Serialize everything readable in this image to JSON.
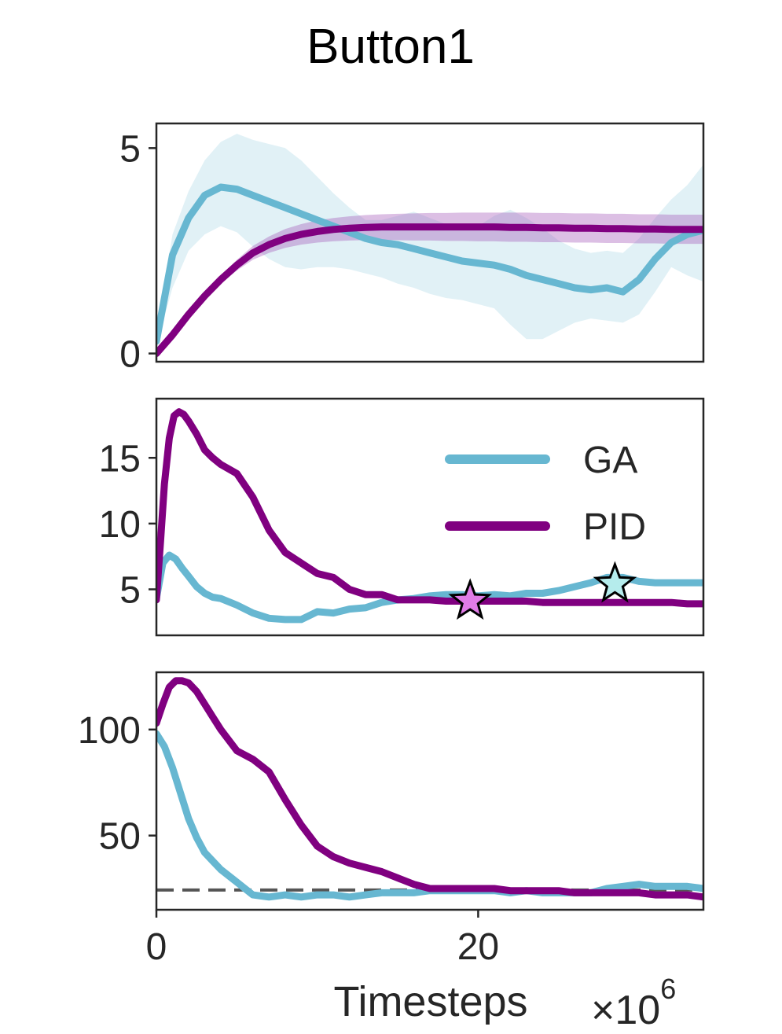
{
  "figure": {
    "title": "Button1",
    "xlabel": "Timesteps",
    "x_scale_base": "×10",
    "x_scale_exp": "6"
  },
  "colors": {
    "GA": "#67b7d1",
    "PID": "#800080",
    "GA_band": "#67b7d1",
    "PID_band": "#a356b8",
    "GA_marker": "#b5ecec",
    "PID_marker": "#e07ce6",
    "threshold": "#555555"
  },
  "legend": {
    "entries": [
      "GA",
      "PID"
    ],
    "placement": "upper-right of middle panel"
  },
  "chart_data": [
    {
      "type": "line",
      "panel": "top",
      "xlim": [
        0,
        34
      ],
      "ylim": [
        -0.2,
        5.6
      ],
      "yticks": [
        0,
        5
      ],
      "ytick_labels": [
        "0",
        "5"
      ],
      "xtick_labels_visible": false,
      "series": [
        {
          "name": "GA",
          "x": [
            0,
            1,
            2,
            3,
            4,
            5,
            6,
            7,
            8,
            9,
            10,
            11,
            12,
            13,
            14,
            15,
            16,
            17,
            18,
            19,
            20,
            21,
            22,
            23,
            24,
            25,
            26,
            27,
            28,
            29,
            30,
            31,
            32,
            33,
            34
          ],
          "values": [
            0.3,
            2.4,
            3.3,
            3.85,
            4.05,
            4.0,
            3.85,
            3.7,
            3.55,
            3.4,
            3.25,
            3.1,
            2.95,
            2.8,
            2.7,
            2.65,
            2.55,
            2.45,
            2.35,
            2.25,
            2.2,
            2.15,
            2.05,
            1.9,
            1.8,
            1.7,
            1.6,
            1.55,
            1.6,
            1.5,
            1.8,
            2.3,
            2.7,
            2.9,
            3.0
          ],
          "lower": [
            0.2,
            1.6,
            2.5,
            2.9,
            3.1,
            2.95,
            2.6,
            2.3,
            2.1,
            2.05,
            2.1,
            2.1,
            2.05,
            1.95,
            1.85,
            1.7,
            1.6,
            1.45,
            1.35,
            1.3,
            1.2,
            1.1,
            0.7,
            0.35,
            0.35,
            0.55,
            0.75,
            0.85,
            0.8,
            0.75,
            0.95,
            1.5,
            2.1,
            1.9,
            1.75
          ],
          "upper": [
            0.4,
            2.9,
            3.95,
            4.7,
            5.15,
            5.35,
            5.2,
            5.1,
            5.0,
            4.7,
            4.3,
            3.9,
            3.55,
            3.25,
            3.25,
            3.35,
            3.45,
            3.3,
            3.15,
            3.05,
            3.1,
            3.35,
            3.5,
            3.3,
            3.05,
            2.75,
            2.55,
            2.45,
            2.5,
            2.45,
            2.8,
            3.3,
            3.75,
            4.1,
            4.6
          ]
        },
        {
          "name": "PID",
          "x": [
            0,
            1,
            2,
            3,
            4,
            5,
            6,
            7,
            8,
            9,
            10,
            11,
            12,
            13,
            14,
            15,
            16,
            17,
            18,
            19,
            20,
            21,
            22,
            23,
            24,
            25,
            26,
            27,
            28,
            29,
            30,
            31,
            32,
            33,
            34
          ],
          "values": [
            0.0,
            0.45,
            0.95,
            1.4,
            1.8,
            2.15,
            2.45,
            2.65,
            2.8,
            2.9,
            2.97,
            3.02,
            3.05,
            3.07,
            3.08,
            3.08,
            3.08,
            3.08,
            3.08,
            3.08,
            3.08,
            3.08,
            3.07,
            3.07,
            3.06,
            3.06,
            3.05,
            3.05,
            3.04,
            3.04,
            3.03,
            3.03,
            3.02,
            3.02,
            3.02
          ],
          "lower": [
            0.0,
            0.42,
            0.9,
            1.33,
            1.7,
            2.02,
            2.28,
            2.45,
            2.57,
            2.65,
            2.7,
            2.73,
            2.75,
            2.76,
            2.76,
            2.76,
            2.75,
            2.75,
            2.74,
            2.74,
            2.73,
            2.73,
            2.72,
            2.72,
            2.71,
            2.71,
            2.7,
            2.7,
            2.69,
            2.69,
            2.68,
            2.68,
            2.67,
            2.67,
            2.67
          ],
          "upper": [
            0.0,
            0.48,
            1.0,
            1.47,
            1.9,
            2.28,
            2.62,
            2.85,
            3.03,
            3.15,
            3.24,
            3.3,
            3.34,
            3.37,
            3.39,
            3.4,
            3.41,
            3.42,
            3.42,
            3.43,
            3.43,
            3.43,
            3.43,
            3.43,
            3.42,
            3.42,
            3.41,
            3.41,
            3.4,
            3.4,
            3.39,
            3.39,
            3.38,
            3.38,
            3.38
          ]
        }
      ]
    },
    {
      "type": "line",
      "panel": "middle",
      "xlim": [
        0,
        34
      ],
      "ylim": [
        1.5,
        19.5
      ],
      "yticks": [
        5,
        10,
        15
      ],
      "ytick_labels": [
        "5",
        "10",
        "15"
      ],
      "xtick_labels_visible": false,
      "series": [
        {
          "name": "GA",
          "x": [
            0,
            0.4,
            0.8,
            1.2,
            1.6,
            2,
            2.5,
            3,
            3.5,
            4,
            5,
            6,
            7,
            8,
            9,
            10,
            11,
            12,
            13,
            14,
            15,
            16,
            17,
            18,
            19,
            20,
            21,
            22,
            23,
            24,
            25,
            26,
            27,
            28,
            29,
            30,
            31,
            32,
            33,
            34
          ],
          "values": [
            4.3,
            7.0,
            7.6,
            7.3,
            6.6,
            6.0,
            5.2,
            4.7,
            4.4,
            4.3,
            3.8,
            3.2,
            2.8,
            2.7,
            2.7,
            3.3,
            3.2,
            3.5,
            3.6,
            4.0,
            4.2,
            4.3,
            4.5,
            4.6,
            4.6,
            4.5,
            4.6,
            4.5,
            4.7,
            4.7,
            4.9,
            5.2,
            5.5,
            5.9,
            5.9,
            5.6,
            5.5,
            5.5,
            5.5,
            5.5
          ]
        },
        {
          "name": "PID",
          "x": [
            0,
            0.25,
            0.5,
            0.8,
            1.1,
            1.4,
            1.7,
            2,
            2.5,
            3,
            3.5,
            4,
            5,
            6,
            7,
            8,
            9,
            10,
            11,
            12,
            13,
            14,
            15,
            16,
            17,
            18,
            19,
            20,
            21,
            22,
            23,
            24,
            25,
            26,
            27,
            28,
            29,
            30,
            31,
            32,
            33,
            34
          ],
          "values": [
            4.2,
            8.5,
            13.0,
            16.5,
            18.2,
            18.5,
            18.3,
            17.8,
            16.8,
            15.6,
            15.0,
            14.5,
            13.8,
            12.0,
            9.5,
            7.8,
            7.0,
            6.2,
            5.9,
            5.0,
            4.6,
            4.6,
            4.2,
            4.2,
            4.2,
            4.1,
            4.1,
            4.1,
            4.1,
            4.1,
            4.1,
            4.0,
            4.0,
            4.0,
            4.0,
            4.0,
            4.0,
            4.0,
            4.0,
            4.0,
            3.9,
            3.9
          ]
        }
      ],
      "markers": [
        {
          "series": "PID",
          "x": 19.5,
          "y": 4.1,
          "shape": "star"
        },
        {
          "series": "GA",
          "x": 28.5,
          "y": 5.4,
          "shape": "star"
        }
      ]
    },
    {
      "type": "line",
      "panel": "bottom",
      "xlim": [
        0,
        34
      ],
      "ylim": [
        15,
        127
      ],
      "yticks": [
        50,
        100
      ],
      "ytick_labels": [
        "50",
        "100"
      ],
      "xticks": [
        0,
        20
      ],
      "xtick_labels": [
        "0",
        "20"
      ],
      "series": [
        {
          "name": "GA",
          "x": [
            0,
            0.5,
            1,
            1.5,
            2,
            2.5,
            3,
            3.5,
            4,
            5,
            6,
            7,
            8,
            9,
            10,
            11,
            12,
            13,
            14,
            15,
            16,
            17,
            18,
            19,
            20,
            21,
            22,
            23,
            24,
            25,
            26,
            27,
            28,
            29,
            30,
            31,
            32,
            33,
            34
          ],
          "values": [
            98,
            92,
            82,
            70,
            58,
            49,
            42,
            38,
            34,
            28,
            22,
            21,
            22,
            21,
            22,
            22,
            21,
            22,
            23,
            23,
            23,
            24,
            24,
            24,
            24,
            24,
            23,
            24,
            23,
            23,
            23,
            23,
            25,
            26,
            27,
            26,
            26,
            26,
            25
          ]
        },
        {
          "name": "PID",
          "x": [
            0,
            0.4,
            0.8,
            1.2,
            1.6,
            2,
            2.5,
            3,
            3.5,
            4,
            5,
            6,
            7,
            8,
            9,
            10,
            11,
            12,
            13,
            14,
            15,
            16,
            17,
            18,
            19,
            20,
            21,
            22,
            23,
            24,
            25,
            26,
            27,
            28,
            29,
            30,
            31,
            32,
            33,
            34
          ],
          "values": [
            103,
            112,
            120,
            123,
            123,
            122,
            118,
            112,
            106,
            100,
            90,
            86,
            80,
            67,
            55,
            45,
            40,
            37,
            35,
            33,
            30,
            27,
            25,
            25,
            25,
            25,
            25,
            24,
            24,
            24,
            24,
            23,
            23,
            23,
            23,
            23,
            22,
            22,
            22,
            21
          ]
        }
      ],
      "hline": {
        "y": 24.3,
        "style": "dashed"
      }
    }
  ]
}
